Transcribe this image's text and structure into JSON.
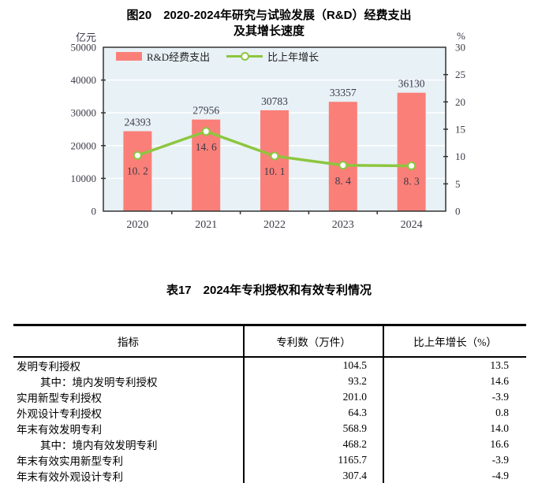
{
  "figure": {
    "title_line1": "图20　2020-2024年研究与试验发展（R&D）经费支出",
    "title_line2": "及其增长速度"
  },
  "chart_data": {
    "type": "bar+line",
    "categories": [
      "2020",
      "2021",
      "2022",
      "2023",
      "2024"
    ],
    "series": [
      {
        "name": "R&D经费支出",
        "type": "bar",
        "axis": "left",
        "values": [
          24393,
          27956,
          30783,
          33357,
          36130
        ],
        "labels": [
          "24393",
          "27956",
          "30783",
          "33357",
          "36130"
        ],
        "color": "#FA7F78"
      },
      {
        "name": "比上年增长",
        "type": "line",
        "axis": "right",
        "values": [
          10.2,
          14.6,
          10.1,
          8.4,
          8.3
        ],
        "labels": [
          "10. 2",
          "14. 6",
          "10. 1",
          "8. 4",
          "8. 3"
        ],
        "color": "#8DC63F",
        "marker_fill": "#FFFFFF"
      }
    ],
    "left_axis": {
      "unit": "亿元",
      "min": 0,
      "max": 50000,
      "ticks": [
        0,
        10000,
        20000,
        30000,
        40000,
        50000
      ]
    },
    "right_axis": {
      "unit": "%",
      "min": 0,
      "max": 30,
      "ticks": [
        0,
        5,
        10,
        15,
        20,
        25,
        30
      ]
    },
    "grid": {
      "show": true,
      "color": "#FFFFFF",
      "values_left": [
        10000,
        20000,
        30000,
        40000
      ]
    },
    "plot_bg": "#E8F1F6",
    "border_color": "#333333",
    "label_color": "#3A3A46",
    "legend_position": "top-left-inside"
  },
  "table": {
    "title": "表17　2024年专利授权和有效专利情况",
    "headers": [
      "指标",
      "专利数（万件）",
      "比上年增长（%）"
    ],
    "rows": [
      {
        "label": "发明专利授权",
        "value": "104.5",
        "growth": "13.5"
      },
      {
        "label": "其中：境内发明专利授权",
        "value": "93.2",
        "growth": "14.6"
      },
      {
        "label": "实用新型专利授权",
        "value": "201.0",
        "growth": "-3.9"
      },
      {
        "label": "外观设计专利授权",
        "value": "64.3",
        "growth": "0.8"
      },
      {
        "label": "年末有效发明专利",
        "value": "568.9",
        "growth": "14.0"
      },
      {
        "label": "其中：境内有效发明专利",
        "value": "468.2",
        "growth": "16.6"
      },
      {
        "label": "年末有效实用新型专利",
        "value": "1165.7",
        "growth": "-3.9"
      },
      {
        "label": "年末有效外观设计专利",
        "value": "307.4",
        "growth": "-4.9"
      }
    ]
  }
}
